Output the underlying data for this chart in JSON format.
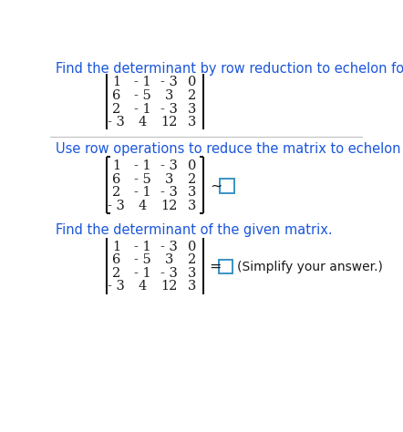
{
  "title1": "Find the determinant by row reduction to echelon form.",
  "title2": "Use row operations to reduce the matrix to echelon form.",
  "title3": "Find the determinant of the given matrix.",
  "matrix_rows": [
    [
      "1",
      "- 1",
      "- 3",
      "0"
    ],
    [
      "6",
      "- 5",
      "3",
      "2"
    ],
    [
      "2",
      "- 1",
      "- 3",
      "3"
    ],
    [
      "- 3",
      "4",
      "12",
      "3"
    ]
  ],
  "simplify_text": "(Simplify your answer.)",
  "text_color": "#1a1a1a",
  "blue_color": "#1a56db",
  "box_stroke_color": "#2a8abf",
  "bg_color": "#ffffff",
  "divider_color": "#c0c0c0",
  "font_size_title": 10.5,
  "font_size_matrix": 10.5,
  "fig_width": 4.42,
  "fig_height": 4.74
}
